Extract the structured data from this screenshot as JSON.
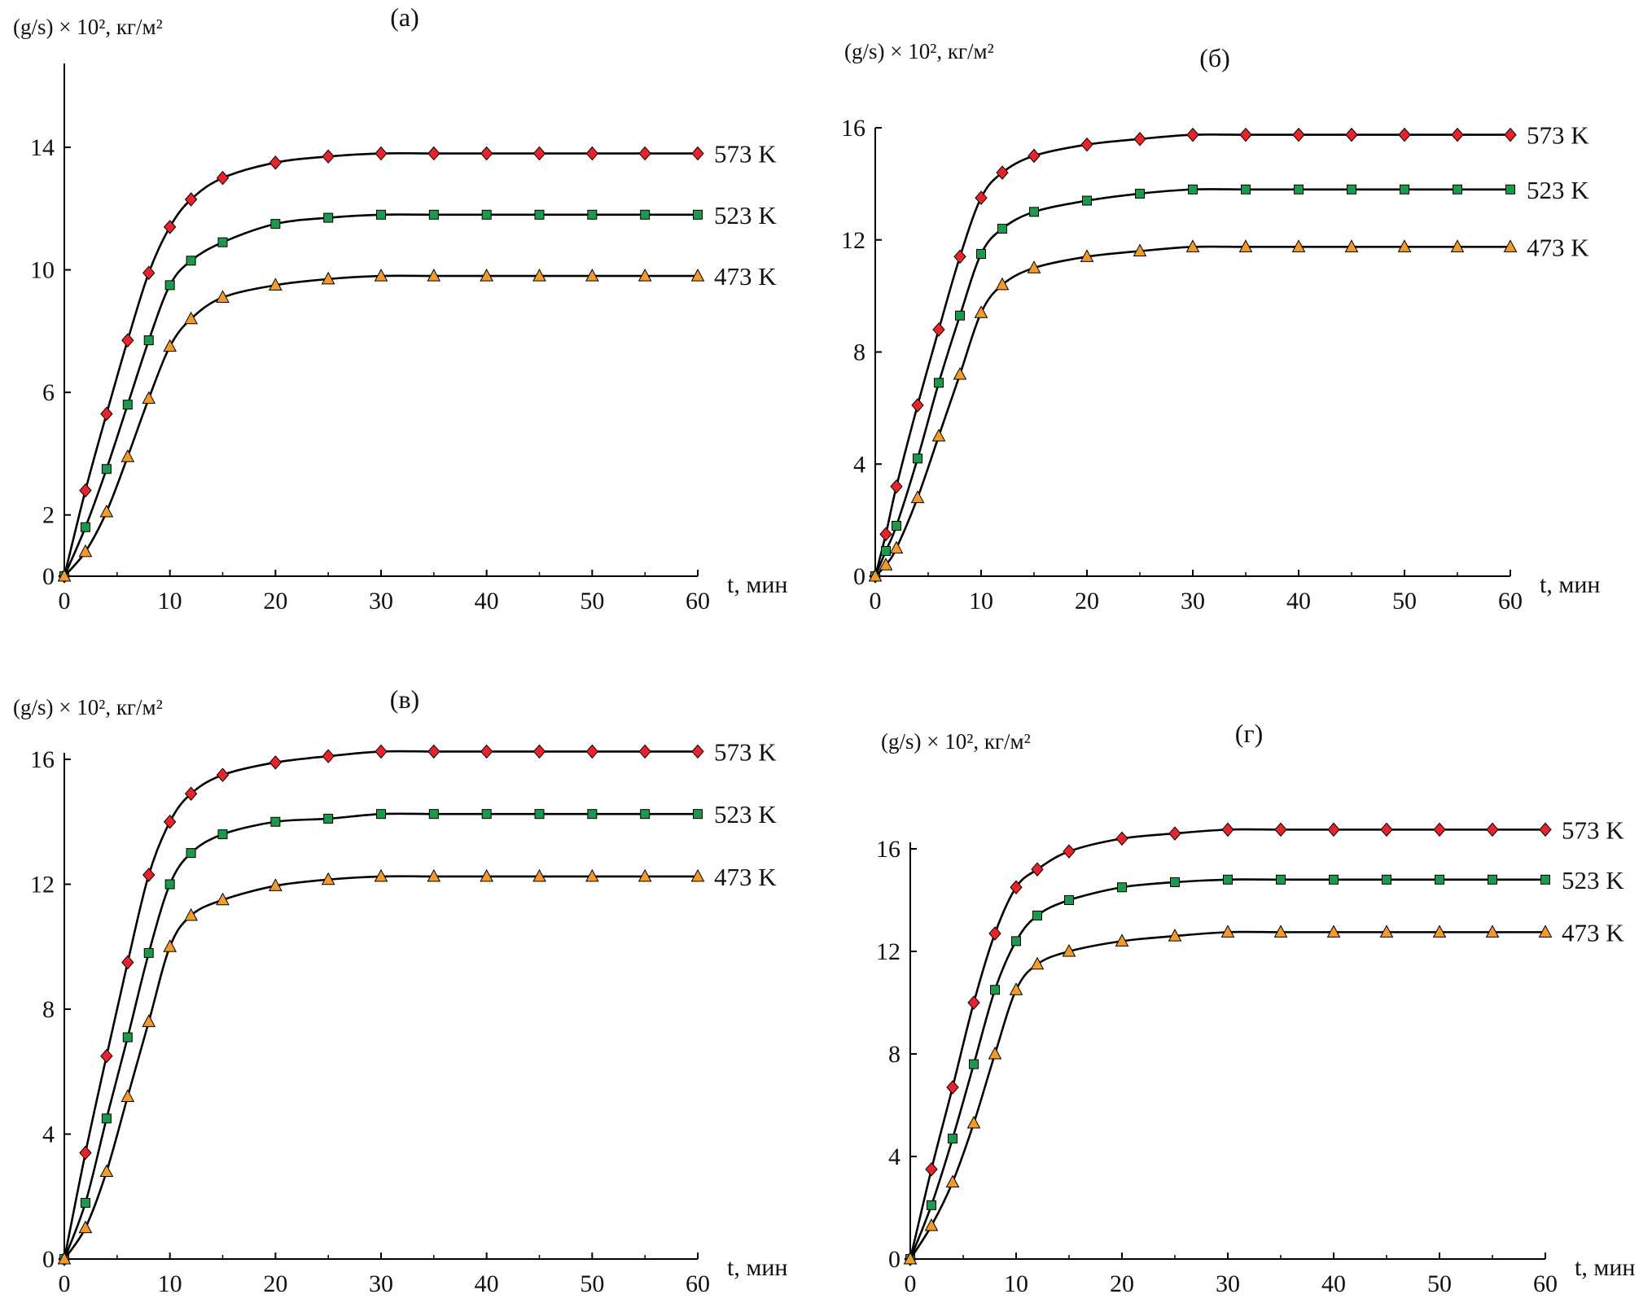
{
  "chart_data": [
    {
      "type": "line",
      "title": "(a)",
      "ylabel": "(g/s) × 10², кг/м²",
      "xlabel": "t, мин",
      "xlim": [
        0,
        60
      ],
      "ylim": [
        0,
        18
      ],
      "xticks": [
        0,
        10,
        20,
        30,
        40,
        50,
        60
      ],
      "yticks": [
        0,
        2,
        6,
        10,
        14
      ],
      "x": [
        0,
        2,
        4,
        6,
        8,
        10,
        12,
        15,
        20,
        25,
        30,
        35,
        40,
        45,
        50,
        55,
        60
      ],
      "series": [
        {
          "name": "573 K",
          "marker": "diamond",
          "color": "#e8232a",
          "values": [
            0,
            2.8,
            5.3,
            7.7,
            9.9,
            11.4,
            12.3,
            13.0,
            13.5,
            13.7,
            13.8,
            13.8,
            13.8,
            13.8,
            13.8,
            13.8,
            13.8
          ]
        },
        {
          "name": "523 K",
          "marker": "square",
          "color": "#1a9a4a",
          "values": [
            0,
            1.6,
            3.5,
            5.6,
            7.7,
            9.5,
            10.3,
            10.9,
            11.5,
            11.7,
            11.8,
            11.8,
            11.8,
            11.8,
            11.8,
            11.8,
            11.8
          ]
        },
        {
          "name": "473 K",
          "marker": "triangle",
          "color": "#f39a2a",
          "values": [
            0,
            0.8,
            2.1,
            3.9,
            5.8,
            7.5,
            8.4,
            9.1,
            9.5,
            9.7,
            9.8,
            9.8,
            9.8,
            9.8,
            9.8,
            9.8,
            9.8
          ]
        }
      ]
    },
    {
      "type": "line",
      "title": "(б)",
      "ylabel": "(g/s) × 10², кг/м²",
      "xlabel": "t, мин",
      "xlim": [
        0,
        60
      ],
      "ylim": [
        0,
        16
      ],
      "xticks": [
        0,
        10,
        20,
        30,
        40,
        50,
        60
      ],
      "yticks": [
        0,
        4,
        8,
        12,
        16
      ],
      "x": [
        0,
        1,
        2,
        4,
        6,
        8,
        10,
        12,
        15,
        20,
        25,
        30,
        35,
        40,
        45,
        50,
        55,
        60
      ],
      "series": [
        {
          "name": "573 K",
          "marker": "diamond",
          "color": "#e8232a",
          "values": [
            0,
            1.5,
            3.2,
            6.1,
            8.8,
            11.4,
            13.5,
            14.4,
            15.0,
            15.4,
            15.6,
            15.75,
            15.75,
            15.75,
            15.75,
            15.75,
            15.75,
            15.75
          ]
        },
        {
          "name": "523 K",
          "marker": "square",
          "color": "#1a9a4a",
          "values": [
            0,
            0.9,
            1.8,
            4.2,
            6.9,
            9.3,
            11.5,
            12.4,
            13.0,
            13.4,
            13.65,
            13.8,
            13.8,
            13.8,
            13.8,
            13.8,
            13.8,
            13.8
          ]
        },
        {
          "name": "473 K",
          "marker": "triangle",
          "color": "#f39a2a",
          "values": [
            0,
            0.4,
            1.0,
            2.8,
            5.0,
            7.2,
            9.4,
            10.4,
            11.0,
            11.4,
            11.6,
            11.75,
            11.75,
            11.75,
            11.75,
            11.75,
            11.75,
            11.75
          ]
        }
      ]
    },
    {
      "type": "line",
      "title": "(в)",
      "ylabel": "(g/s) × 10², кг/м²",
      "xlabel": "t, мин",
      "xlim": [
        0,
        60
      ],
      "ylim": [
        0,
        16.5
      ],
      "xticks": [
        0,
        10,
        20,
        30,
        40,
        50,
        60
      ],
      "yticks": [
        0,
        4,
        8,
        12,
        16
      ],
      "x": [
        0,
        2,
        4,
        6,
        8,
        10,
        12,
        15,
        20,
        25,
        30,
        35,
        40,
        45,
        50,
        55,
        60
      ],
      "series": [
        {
          "name": "573 K",
          "marker": "diamond",
          "color": "#e8232a",
          "values": [
            0,
            3.4,
            6.5,
            9.5,
            12.3,
            14.0,
            14.9,
            15.5,
            15.9,
            16.1,
            16.25,
            16.25,
            16.25,
            16.25,
            16.25,
            16.25,
            16.25
          ]
        },
        {
          "name": "523 K",
          "marker": "square",
          "color": "#1a9a4a",
          "values": [
            0,
            1.8,
            4.5,
            7.1,
            9.8,
            12.0,
            13.0,
            13.6,
            14.0,
            14.1,
            14.25,
            14.25,
            14.25,
            14.25,
            14.25,
            14.25,
            14.25
          ]
        },
        {
          "name": "473 K",
          "marker": "triangle",
          "color": "#f39a2a",
          "values": [
            0,
            1.0,
            2.8,
            5.2,
            7.6,
            10.0,
            11.0,
            11.5,
            11.95,
            12.15,
            12.25,
            12.25,
            12.25,
            12.25,
            12.25,
            12.25,
            12.25
          ]
        }
      ]
    },
    {
      "type": "line",
      "title": "(г)",
      "ylabel": "(g/s) × 10², кг/м²",
      "xlabel": "t, мин",
      "xlim": [
        0,
        60
      ],
      "ylim": [
        0,
        16.5
      ],
      "xticks": [
        0,
        10,
        20,
        30,
        40,
        50,
        60
      ],
      "yticks": [
        0,
        4,
        8,
        12,
        16
      ],
      "x": [
        0,
        2,
        4,
        6,
        8,
        10,
        12,
        15,
        20,
        25,
        30,
        35,
        40,
        45,
        50,
        55,
        60
      ],
      "series": [
        {
          "name": "573 K",
          "marker": "diamond",
          "color": "#e8232a",
          "values": [
            0,
            3.5,
            6.7,
            10.0,
            12.7,
            14.5,
            15.2,
            15.9,
            16.4,
            16.6,
            16.75,
            16.75,
            16.75,
            16.75,
            16.75,
            16.75,
            16.75
          ]
        },
        {
          "name": "523 K",
          "marker": "square",
          "color": "#1a9a4a",
          "values": [
            0,
            2.1,
            4.7,
            7.6,
            10.5,
            12.4,
            13.4,
            14.0,
            14.5,
            14.7,
            14.8,
            14.8,
            14.8,
            14.8,
            14.8,
            14.8,
            14.8
          ]
        },
        {
          "name": "473 K",
          "marker": "triangle",
          "color": "#f39a2a",
          "values": [
            0,
            1.3,
            3.0,
            5.3,
            8.0,
            10.5,
            11.5,
            12.0,
            12.4,
            12.6,
            12.75,
            12.75,
            12.75,
            12.75,
            12.75,
            12.75,
            12.75
          ]
        }
      ]
    }
  ]
}
